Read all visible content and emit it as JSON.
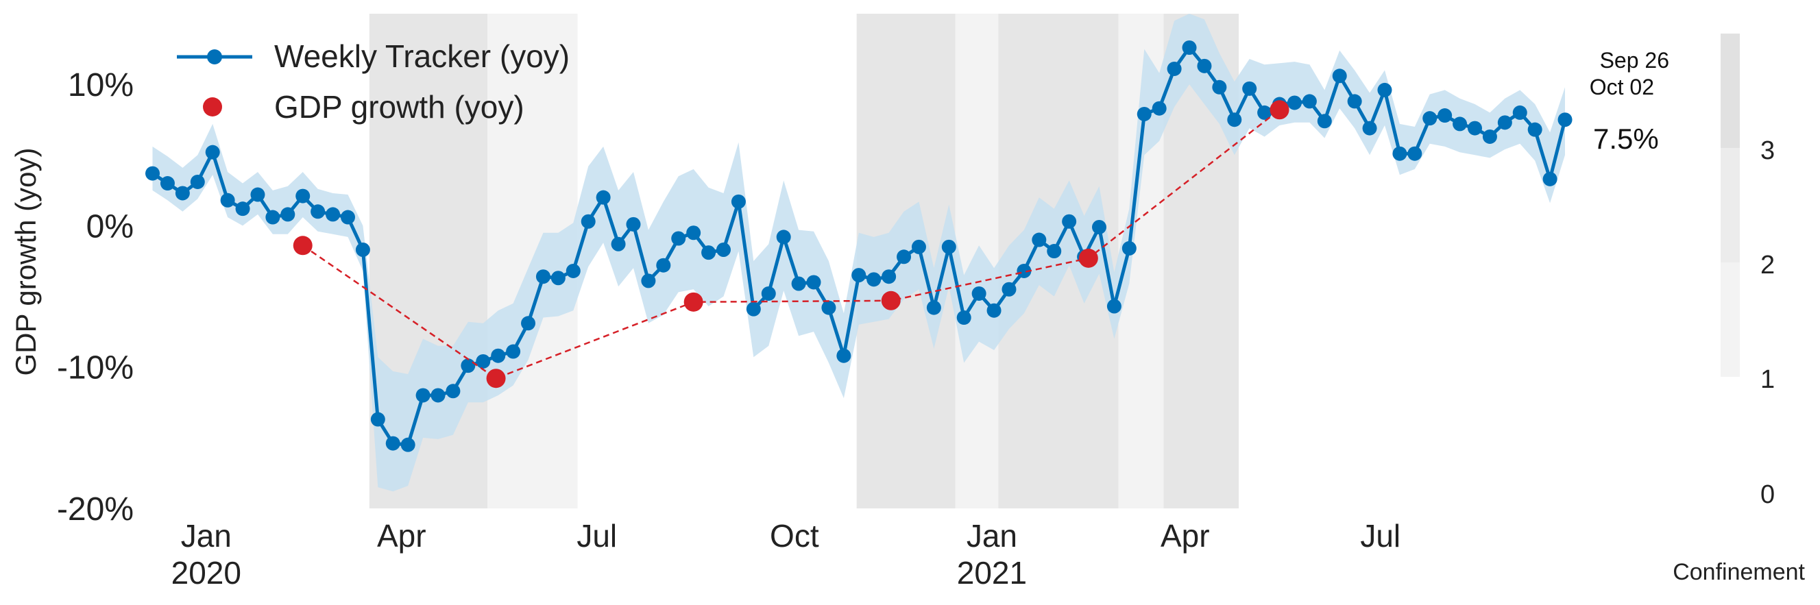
{
  "chart_data": {
    "type": "line",
    "title": "",
    "xlabel": "",
    "ylabel": "GDP growth (yoy)",
    "ylim": [
      -20,
      15
    ],
    "xlim": [
      "2019-12-03",
      "2021-10-10"
    ],
    "y_ticks": [
      10,
      0,
      -10,
      -20
    ],
    "y_tick_labels": [
      "10%",
      "0%",
      "-10%",
      "-20%"
    ],
    "x_ticks": [
      {
        "date": "2020-01-01",
        "label": "Jan",
        "year": "2020"
      },
      {
        "date": "2020-04-01",
        "label": "Apr"
      },
      {
        "date": "2020-07-01",
        "label": "Jul"
      },
      {
        "date": "2020-10-01",
        "label": "Oct"
      },
      {
        "date": "2021-01-01",
        "label": "Jan",
        "year": "2021"
      },
      {
        "date": "2021-04-01",
        "label": "Apr"
      },
      {
        "date": "2021-07-01",
        "label": "Jul"
      }
    ],
    "legend": {
      "position": "top-left",
      "entries": [
        "Weekly Tracker (yoy)",
        "GDP growth (yoy)"
      ]
    },
    "annotations": {
      "last_week": [
        "Sep 26",
        "Oct 02"
      ],
      "last_value": "7.5%"
    },
    "confinement": {
      "label": "Confinement",
      "ticks": [
        "0",
        "1",
        "2",
        "3"
      ],
      "periods": [
        {
          "start": "2020-03-17",
          "end": "2020-05-11",
          "level": 3
        },
        {
          "start": "2020-05-11",
          "end": "2020-06-22",
          "level": 1
        },
        {
          "start": "2020-10-30",
          "end": "2020-12-15",
          "level": 3
        },
        {
          "start": "2020-12-15",
          "end": "2021-01-04",
          "level": 1
        },
        {
          "start": "2021-01-04",
          "end": "2021-03-01",
          "level": 3
        },
        {
          "start": "2021-03-01",
          "end": "2021-03-22",
          "level": 1
        },
        {
          "start": "2021-03-22",
          "end": "2021-04-26",
          "level": 3
        }
      ]
    },
    "colors": {
      "tracker": "#0070b8",
      "band": "#c6dff0",
      "gdp": "#d62027",
      "confinement_strong": "#e6e6e6",
      "confinement_light": "#f3f3f3"
    },
    "series": [
      {
        "name": "Weekly Tracker (yoy)",
        "start_date": "2019-12-07",
        "step_days": 7,
        "values": [
          3.7,
          3.0,
          2.3,
          3.1,
          5.2,
          1.8,
          1.2,
          2.2,
          0.6,
          0.8,
          2.1,
          1.0,
          0.8,
          0.6,
          -1.7,
          -13.7,
          -15.4,
          -15.5,
          -12.0,
          -12.0,
          -11.7,
          -9.9,
          -9.6,
          -9.2,
          -8.9,
          -6.9,
          -3.6,
          -3.7,
          -3.2,
          0.3,
          2.0,
          -1.3,
          0.1,
          -3.9,
          -2.8,
          -0.9,
          -0.5,
          -1.9,
          -1.7,
          1.7,
          -5.9,
          -4.8,
          -0.8,
          -4.1,
          -4.0,
          -5.8,
          -9.2,
          -3.5,
          -3.8,
          -3.6,
          -2.2,
          -1.5,
          -5.8,
          -1.5,
          -6.5,
          -4.8,
          -6.0,
          -4.5,
          -3.2,
          -1.0,
          -1.8,
          0.3,
          -2.2,
          -0.1,
          -5.7,
          -1.6,
          7.9,
          8.3,
          11.1,
          12.6,
          11.3,
          9.8,
          7.5,
          9.7,
          8.0,
          8.6,
          8.7,
          8.8,
          7.4,
          10.6,
          8.8,
          6.9,
          9.6,
          5.1,
          5.1,
          7.6,
          7.8,
          7.2,
          6.9,
          6.3,
          7.3,
          8.0,
          6.8,
          3.3,
          7.5
        ],
        "lower": [
          2.5,
          1.8,
          1.0,
          1.9,
          3.6,
          0.6,
          0.0,
          0.8,
          -0.6,
          -0.6,
          0.6,
          -0.4,
          -0.6,
          -0.8,
          -3.2,
          -18.5,
          -18.8,
          -18.4,
          -15.0,
          -15.1,
          -14.8,
          -12.5,
          -12.5,
          -12.0,
          -11.3,
          -9.5,
          -6.5,
          -6.4,
          -6.0,
          -2.9,
          -1.2,
          -4.3,
          -3.0,
          -6.9,
          -6.3,
          -4.7,
          -4.5,
          -5.7,
          -5.0,
          -1.8,
          -9.3,
          -8.5,
          -4.6,
          -7.8,
          -7.5,
          -9.7,
          -12.2,
          -7.0,
          -6.8,
          -6.6,
          -5.2,
          -4.5,
          -8.7,
          -4.3,
          -9.7,
          -8.2,
          -8.8,
          -7.3,
          -6.2,
          -4.2,
          -5.0,
          -2.8,
          -5.5,
          -3.4,
          -8.0,
          -4.1,
          5.0,
          6.0,
          8.4,
          10.0,
          8.6,
          7.2,
          5.0,
          6.9,
          6.3,
          7.1,
          7.3,
          7.3,
          6.2,
          8.3,
          6.9,
          5.0,
          7.1,
          3.6,
          4.0,
          5.8,
          5.6,
          5.2,
          5.0,
          4.8,
          5.4,
          5.8,
          4.6,
          1.6,
          5.0
        ],
        "upper": [
          5.6,
          4.9,
          4.1,
          5.0,
          7.2,
          3.8,
          3.0,
          3.8,
          2.5,
          2.8,
          3.8,
          2.6,
          2.3,
          2.2,
          0.0,
          -9.3,
          -10.3,
          -10.5,
          -8.0,
          -8.5,
          -8.5,
          -6.8,
          -6.9,
          -6.0,
          -5.5,
          -3.0,
          -0.5,
          -0.5,
          0.2,
          4.2,
          5.6,
          2.5,
          3.8,
          -0.3,
          1.7,
          3.5,
          4.0,
          2.7,
          2.3,
          5.9,
          -2.5,
          -1.3,
          3.2,
          -0.3,
          -0.4,
          -2.5,
          -6.2,
          -0.5,
          -0.8,
          -0.5,
          1.0,
          1.7,
          -3.0,
          1.5,
          -3.5,
          -1.4,
          -3.0,
          -1.4,
          -0.3,
          2.0,
          1.2,
          3.2,
          0.7,
          2.8,
          -3.3,
          1.2,
          12.5,
          10.8,
          14.5,
          15.0,
          14.6,
          12.2,
          10.2,
          11.8,
          11.4,
          11.5,
          11.6,
          11.4,
          9.6,
          12.4,
          11.0,
          9.4,
          11.0,
          7.2,
          7.0,
          9.3,
          9.6,
          9.0,
          8.6,
          8.0,
          9.0,
          9.6,
          8.6,
          6.6,
          9.8
        ]
      },
      {
        "name": "GDP growth (yoy)",
        "points": [
          {
            "x": "2020-02-15",
            "y": -1.4
          },
          {
            "x": "2020-05-15",
            "y": -10.8
          },
          {
            "x": "2020-08-15",
            "y": -5.4
          },
          {
            "x": "2020-11-15",
            "y": -5.3
          },
          {
            "x": "2021-02-15",
            "y": -2.3
          },
          {
            "x": "2021-05-15",
            "y": 8.2
          }
        ]
      }
    ]
  }
}
